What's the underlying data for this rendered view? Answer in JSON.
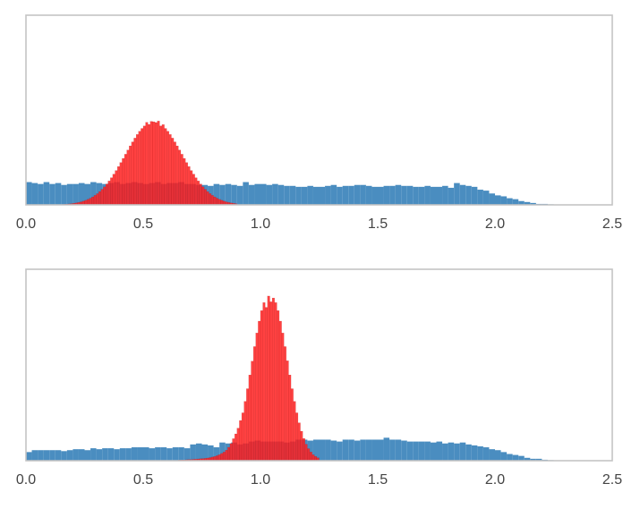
{
  "chart_data": [
    {
      "type": "bar",
      "title": "",
      "xlabel": "",
      "ylabel": "",
      "xlim": [
        0,
        2.5
      ],
      "ylim": [
        0,
        100
      ],
      "grid": false,
      "xticks": [
        "0.0",
        "0.5",
        "1.0",
        "1.5",
        "2.0",
        "2.5"
      ],
      "xtick_values": [
        0,
        0.5,
        1.0,
        1.5,
        2.0,
        2.5
      ],
      "series": [
        {
          "name": "blue",
          "color": "#4a8dc0",
          "bin_start": 0.0,
          "bin_width": 0.025,
          "values": [
            12,
            11.5,
            11,
            12,
            11,
            11.5,
            10.5,
            11,
            11,
            11.5,
            11,
            12,
            11.5,
            11,
            11.5,
            12,
            11,
            11.5,
            12,
            11.5,
            11,
            11.5,
            12,
            11,
            11.5,
            11.5,
            12,
            11,
            11,
            10.5,
            10.5,
            10,
            11,
            10.5,
            11,
            10.5,
            10,
            12,
            10.5,
            11,
            11,
            10.5,
            11,
            10.5,
            10,
            10,
            9.5,
            9.5,
            10,
            9.5,
            9.5,
            10,
            10.5,
            9.5,
            10,
            10,
            10.5,
            10.5,
            10,
            9.5,
            9.5,
            10,
            10,
            10.5,
            10,
            10,
            9.5,
            9.5,
            10,
            9.5,
            9.5,
            10,
            9,
            11.5,
            10.5,
            10,
            9.5,
            8,
            7.5,
            6,
            5,
            4.5,
            3.5,
            3,
            2,
            1.5,
            1,
            0.5,
            0.5,
            0.3,
            0.2,
            0.1
          ]
        },
        {
          "name": "red",
          "color": "#ff2020",
          "bin_start": 0.1,
          "bin_width": 0.01,
          "values": [
            0.05,
            0.07,
            0.1,
            0.13,
            0.17,
            0.22,
            0.29,
            0.38,
            0.49,
            0.63,
            0.8,
            1.0,
            1.25,
            1.56,
            1.94,
            2.4,
            2.9,
            3.5,
            4.2,
            5.0,
            5.9,
            7.0,
            8.2,
            9.5,
            11,
            12.6,
            14.3,
            16.2,
            18.1,
            20.2,
            22.3,
            24.5,
            26.7,
            28.9,
            31.1,
            33.2,
            35.2,
            37.1,
            38.8,
            40.3,
            41.6,
            43.5,
            42.4,
            44,
            43.8,
            43.4,
            44.2,
            41.6,
            42.3,
            40.3,
            38.8,
            37.1,
            35.2,
            33.2,
            31.1,
            28.9,
            26.7,
            24.5,
            22.3,
            20.2,
            18.1,
            16.2,
            14.3,
            12.6,
            11,
            9.5,
            8.2,
            7.0,
            5.9,
            5.0,
            4.2,
            3.5,
            2.9,
            2.4,
            1.94,
            1.56,
            1.25,
            1.0,
            0.8,
            0.63
          ]
        }
      ]
    },
    {
      "type": "bar",
      "title": "",
      "xlabel": "",
      "ylabel": "",
      "xlim": [
        0,
        2.5
      ],
      "ylim": [
        0,
        100
      ],
      "grid": false,
      "xticks": [
        "0.0",
        "0.5",
        "1.0",
        "1.5",
        "2.0",
        "2.5"
      ],
      "xtick_values": [
        0,
        0.5,
        1.0,
        1.5,
        2.0,
        2.5
      ],
      "series": [
        {
          "name": "blue",
          "color": "#4a8dc0",
          "bin_start": 0.0,
          "bin_width": 0.025,
          "values": [
            4.5,
            5.5,
            5.5,
            5.5,
            5.5,
            5.5,
            5,
            5.5,
            6,
            6,
            5.5,
            6.5,
            6,
            6.5,
            6.5,
            6,
            6.5,
            6.5,
            7,
            7,
            7,
            6.5,
            7,
            7,
            6.5,
            7,
            7,
            6.5,
            8.5,
            9,
            8.5,
            8,
            7,
            9.5,
            9,
            9.5,
            8.5,
            9,
            10,
            10.5,
            10,
            10,
            10,
            10,
            9.5,
            10,
            11,
            11,
            10.5,
            11,
            11,
            11,
            10.5,
            10,
            11,
            11,
            10.5,
            11,
            11,
            11,
            11,
            12,
            11,
            11,
            10.5,
            10,
            10,
            10,
            10,
            9.5,
            10,
            9,
            9.5,
            9,
            9.5,
            8.5,
            8,
            7.5,
            7,
            6,
            5.5,
            4.5,
            3.5,
            3,
            2.5,
            1.5,
            1,
            1,
            0.5,
            0.3,
            0.2,
            0.1
          ]
        },
        {
          "name": "red",
          "color": "#ff2020",
          "bin_start": 0.65,
          "bin_width": 0.01,
          "values": [
            0.3,
            0.4,
            0.4,
            0.5,
            0.6,
            0.6,
            0.7,
            0.8,
            0.9,
            1.0,
            1.1,
            1.2,
            1.4,
            1.6,
            1.9,
            2.2,
            2.6,
            3.1,
            3.8,
            4.5,
            5.5,
            7,
            9,
            11.5,
            14,
            17,
            21,
            25,
            31,
            37.6,
            44.8,
            52,
            59.6,
            66.7,
            72.9,
            78.4,
            82.6,
            80.1,
            86,
            83,
            85,
            82.6,
            78.4,
            72.9,
            66.7,
            59.6,
            52.2,
            44.8,
            37.6,
            31,
            25,
            19.8,
            15.4,
            11.6,
            8.6,
            6.3,
            4.5,
            3.1,
            2.2,
            1.5
          ]
        }
      ]
    }
  ]
}
